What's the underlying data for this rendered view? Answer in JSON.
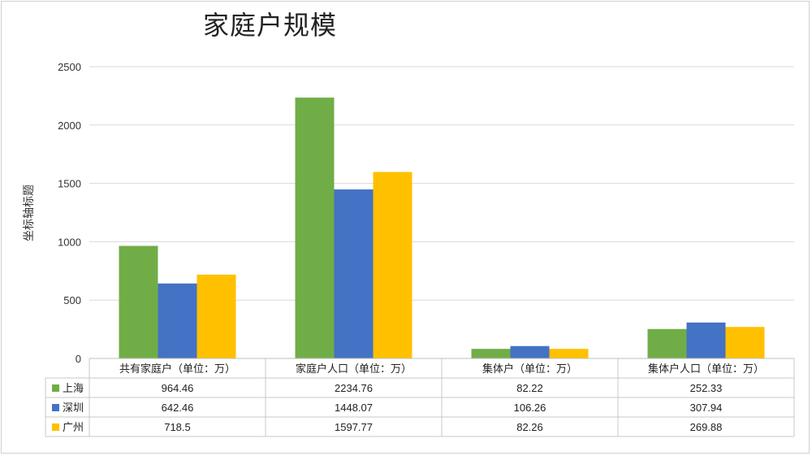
{
  "chart_data": {
    "type": "bar",
    "title": "家庭户规模",
    "ylabel": "坐标轴标题",
    "ylim": [
      0,
      2500
    ],
    "yticks": [
      0,
      500,
      1000,
      1500,
      2000,
      2500
    ],
    "grid": true,
    "legend": "table",
    "categories": [
      "共有家庭户（单位：万）",
      "家庭户人口（单位：万）",
      "集体户（单位：万）",
      "集体户人口（单位：万）"
    ],
    "series": [
      {
        "name": "上海",
        "color": "#70ad47",
        "values": [
          964.46,
          2234.76,
          82.22,
          252.33
        ],
        "labels": [
          "964.46",
          "2234.76",
          "82.22",
          "252.33"
        ]
      },
      {
        "name": "深圳",
        "color": "#4472c4",
        "values": [
          642.46,
          1448.07,
          106.26,
          307.94
        ],
        "labels": [
          "642.46",
          "1448.07",
          "106.26",
          "307.94"
        ]
      },
      {
        "name": "广州",
        "color": "#ffc000",
        "values": [
          718.5,
          1597.77,
          82.26,
          269.88
        ],
        "labels": [
          "718.5",
          "1597.77",
          "82.26",
          "269.88"
        ]
      }
    ]
  }
}
